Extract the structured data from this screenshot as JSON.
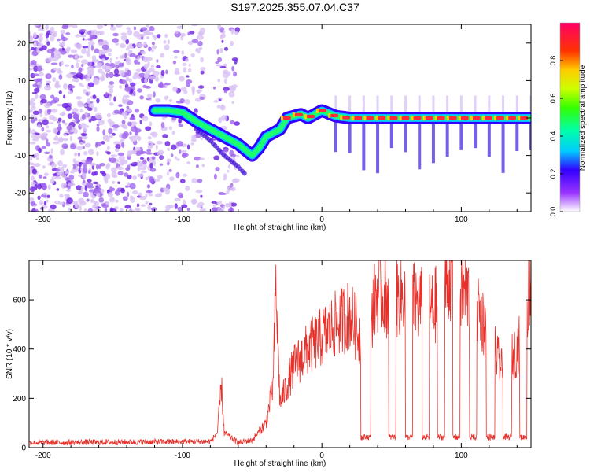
{
  "title": "S197.2025.355.07.04.C37",
  "chart_data": [
    {
      "type": "heatmap",
      "xlabel": "Height of straight line (km)",
      "ylabel": "Frequency (Hz)",
      "xlim": [
        -210,
        150
      ],
      "ylim": [
        -25,
        25
      ],
      "xticks": [
        -200,
        -100,
        0,
        100
      ],
      "yticks": [
        -20,
        -10,
        0,
        10,
        20
      ],
      "colorbar": {
        "label": "Normalized spectral amplitude",
        "range": [
          0.0,
          1.0
        ],
        "ticks": [
          "0.0",
          "0.2",
          "0.4",
          "0.6",
          "0.8"
        ]
      },
      "features": {
        "main_trace": [
          [
            -120,
            2
          ],
          [
            -110,
            2
          ],
          [
            -100,
            1.5
          ],
          [
            -90,
            -1
          ],
          [
            -80,
            -3
          ],
          [
            -70,
            -5
          ],
          [
            -60,
            -7
          ],
          [
            -50,
            -10
          ],
          [
            -45,
            -8
          ],
          [
            -40,
            -5
          ],
          [
            -30,
            -3
          ],
          [
            -25,
            0
          ],
          [
            -15,
            1
          ],
          [
            -10,
            0
          ],
          [
            -5,
            1
          ],
          [
            0,
            2
          ],
          [
            10,
            0.5
          ],
          [
            20,
            0
          ],
          [
            40,
            0
          ],
          [
            60,
            0
          ],
          [
            80,
            0
          ],
          [
            90,
            0
          ],
          [
            100,
            0
          ],
          [
            120,
            0
          ],
          [
            150,
            0
          ]
        ],
        "secondary_trace": [
          [
            -90,
            -3
          ],
          [
            -80,
            -6
          ],
          [
            -70,
            -10
          ],
          [
            -60,
            -13
          ],
          [
            -55,
            -15
          ]
        ],
        "noise_region_x": [
          -210,
          -60
        ]
      }
    },
    {
      "type": "line",
      "xlabel": "Height of straight line (km)",
      "ylabel": "SNR (10 * v/v)",
      "xlim": [
        -210,
        150
      ],
      "ylim": [
        0,
        760
      ],
      "xticks": [
        -200,
        -100,
        0,
        100
      ],
      "yticks": [
        0,
        200,
        400,
        600
      ],
      "series_color": "#e8302a",
      "envelope": [
        [
          -210,
          20
        ],
        [
          -80,
          25
        ],
        [
          -75,
          60
        ],
        [
          -72,
          250
        ],
        [
          -70,
          60
        ],
        [
          -60,
          20
        ],
        [
          -50,
          30
        ],
        [
          -40,
          100
        ],
        [
          -35,
          250
        ],
        [
          -33,
          660
        ],
        [
          -30,
          180
        ],
        [
          -20,
          330
        ],
        [
          -10,
          400
        ],
        [
          0,
          450
        ],
        [
          10,
          500
        ],
        [
          20,
          540
        ],
        [
          30,
          420
        ],
        [
          40,
          640
        ],
        [
          50,
          600
        ],
        [
          60,
          620
        ],
        [
          70,
          580
        ],
        [
          80,
          560
        ],
        [
          90,
          680
        ],
        [
          95,
          740
        ],
        [
          100,
          640
        ],
        [
          110,
          600
        ],
        [
          120,
          450
        ],
        [
          130,
          300
        ],
        [
          140,
          400
        ],
        [
          145,
          470
        ],
        [
          150,
          700
        ]
      ],
      "dropouts": [
        [
          28,
          35
        ],
        [
          48,
          53
        ],
        [
          60,
          65
        ],
        [
          72,
          77
        ],
        [
          83,
          88
        ],
        [
          94,
          99
        ],
        [
          106,
          111
        ],
        [
          118,
          124
        ],
        [
          130,
          136
        ],
        [
          142,
          147
        ]
      ],
      "dropout_level": 30
    }
  ]
}
